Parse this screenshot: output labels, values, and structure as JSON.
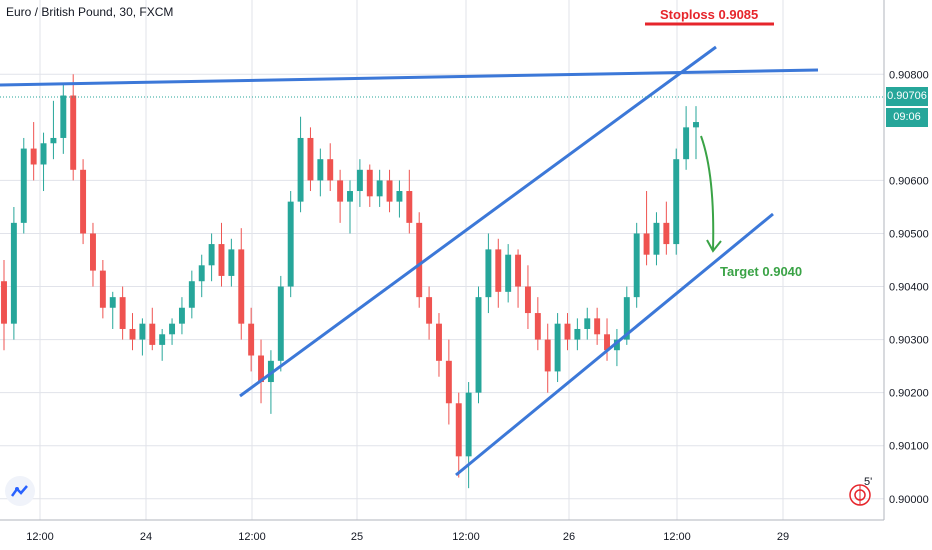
{
  "title": "Euro / British Pound, 30, FXCM",
  "annotations": {
    "stoploss": "Stoploss 0.9085",
    "target": "Target 0.9040"
  },
  "price_axis": {
    "ticks": [
      "0.90800",
      "0.90600",
      "0.90500",
      "0.90400",
      "0.90300",
      "0.90200",
      "0.90100",
      "0.90000"
    ],
    "current_price": "0.90706",
    "countdown": "09:06",
    "countdown_color": "#26a69a",
    "price_color": "#26a69a"
  },
  "time_axis": {
    "ticks": [
      "12:00",
      "24",
      "12:00",
      "25",
      "12:00",
      "26",
      "12:00",
      "29"
    ]
  },
  "mini_label": "5'",
  "colors": {
    "up": "#26a69a",
    "down": "#ef5350",
    "trendline": "#3c78d8",
    "stoploss": "#e6252b",
    "target": "#3aa346",
    "grid": "#e1e3ea"
  },
  "chart_data": {
    "type": "candlestick",
    "symbol": "EURGBP",
    "interval": "30",
    "ylim": [
      0.8996,
      0.9094
    ],
    "last_price": 0.90706,
    "stoploss": 0.9085,
    "target": 0.904,
    "x_ticks": [
      "12:00",
      "24",
      "12:00",
      "25",
      "12:00",
      "26",
      "12:00",
      "29"
    ],
    "candles": [
      [
        0.9041,
        0.9045,
        0.9028,
        0.9033
      ],
      [
        0.9033,
        0.9055,
        0.903,
        0.9052
      ],
      [
        0.9052,
        0.9068,
        0.905,
        0.9066
      ],
      [
        0.9066,
        0.9071,
        0.906,
        0.9063
      ],
      [
        0.9063,
        0.9069,
        0.9058,
        0.9067
      ],
      [
        0.9067,
        0.9075,
        0.9064,
        0.9068
      ],
      [
        0.9068,
        0.9078,
        0.9065,
        0.9076
      ],
      [
        0.9076,
        0.908,
        0.906,
        0.9062
      ],
      [
        0.9062,
        0.9064,
        0.9048,
        0.905
      ],
      [
        0.905,
        0.9052,
        0.904,
        0.9043
      ],
      [
        0.9043,
        0.9045,
        0.9034,
        0.9036
      ],
      [
        0.9036,
        0.9039,
        0.9032,
        0.9038
      ],
      [
        0.9038,
        0.904,
        0.903,
        0.9032
      ],
      [
        0.9032,
        0.9035,
        0.9028,
        0.903
      ],
      [
        0.903,
        0.9034,
        0.9027,
        0.9033
      ],
      [
        0.9033,
        0.9036,
        0.9028,
        0.9029
      ],
      [
        0.9029,
        0.9032,
        0.9026,
        0.9031
      ],
      [
        0.9031,
        0.9034,
        0.9029,
        0.9033
      ],
      [
        0.9033,
        0.9038,
        0.9031,
        0.9036
      ],
      [
        0.9036,
        0.9043,
        0.9034,
        0.9041
      ],
      [
        0.9041,
        0.9046,
        0.9038,
        0.9044
      ],
      [
        0.9044,
        0.905,
        0.9041,
        0.9048
      ],
      [
        0.9048,
        0.9052,
        0.904,
        0.9042
      ],
      [
        0.9042,
        0.9049,
        0.904,
        0.9047
      ],
      [
        0.9047,
        0.9051,
        0.903,
        0.9033
      ],
      [
        0.9033,
        0.9036,
        0.9024,
        0.9027
      ],
      [
        0.9027,
        0.903,
        0.9018,
        0.9022
      ],
      [
        0.9022,
        0.9028,
        0.9016,
        0.9026
      ],
      [
        0.9026,
        0.9042,
        0.9024,
        0.904
      ],
      [
        0.904,
        0.9058,
        0.9038,
        0.9056
      ],
      [
        0.9056,
        0.9072,
        0.9054,
        0.9068
      ],
      [
        0.9068,
        0.907,
        0.9058,
        0.906
      ],
      [
        0.906,
        0.9066,
        0.9057,
        0.9064
      ],
      [
        0.9064,
        0.9067,
        0.9058,
        0.906
      ],
      [
        0.906,
        0.9062,
        0.9052,
        0.9056
      ],
      [
        0.9056,
        0.906,
        0.905,
        0.9058
      ],
      [
        0.9058,
        0.9064,
        0.9055,
        0.9062
      ],
      [
        0.9062,
        0.9063,
        0.9055,
        0.9057
      ],
      [
        0.9057,
        0.9062,
        0.9055,
        0.906
      ],
      [
        0.906,
        0.9062,
        0.9054,
        0.9056
      ],
      [
        0.9056,
        0.906,
        0.9053,
        0.9058
      ],
      [
        0.9058,
        0.9062,
        0.905,
        0.9052
      ],
      [
        0.9052,
        0.9054,
        0.9036,
        0.9038
      ],
      [
        0.9038,
        0.904,
        0.903,
        0.9033
      ],
      [
        0.9033,
        0.9035,
        0.9023,
        0.9026
      ],
      [
        0.9026,
        0.903,
        0.9014,
        0.9018
      ],
      [
        0.9018,
        0.902,
        0.9004,
        0.9008
      ],
      [
        0.9008,
        0.9022,
        0.9002,
        0.902
      ],
      [
        0.902,
        0.904,
        0.9018,
        0.9038
      ],
      [
        0.9038,
        0.905,
        0.9035,
        0.9047
      ],
      [
        0.9047,
        0.9049,
        0.9036,
        0.9039
      ],
      [
        0.9039,
        0.9048,
        0.9037,
        0.9046
      ],
      [
        0.9046,
        0.9047,
        0.9036,
        0.904
      ],
      [
        0.904,
        0.9044,
        0.9032,
        0.9035
      ],
      [
        0.9035,
        0.9038,
        0.9028,
        0.903
      ],
      [
        0.903,
        0.9033,
        0.902,
        0.9024
      ],
      [
        0.9024,
        0.9035,
        0.9022,
        0.9033
      ],
      [
        0.9033,
        0.9035,
        0.9028,
        0.903
      ],
      [
        0.903,
        0.9034,
        0.9028,
        0.9032
      ],
      [
        0.9032,
        0.9036,
        0.903,
        0.9034
      ],
      [
        0.9034,
        0.9036,
        0.9029,
        0.9031
      ],
      [
        0.9031,
        0.9034,
        0.9026,
        0.9028
      ],
      [
        0.9028,
        0.9032,
        0.9025,
        0.903
      ],
      [
        0.903,
        0.904,
        0.9029,
        0.9038
      ],
      [
        0.9038,
        0.9052,
        0.9036,
        0.905
      ],
      [
        0.905,
        0.9058,
        0.9044,
        0.9046
      ],
      [
        0.9046,
        0.9054,
        0.9044,
        0.9052
      ],
      [
        0.9052,
        0.9056,
        0.9046,
        0.9048
      ],
      [
        0.9048,
        0.9066,
        0.9046,
        0.9064
      ],
      [
        0.9064,
        0.9074,
        0.9062,
        0.907
      ],
      [
        0.907,
        0.9074,
        0.9064,
        0.9071
      ]
    ]
  }
}
